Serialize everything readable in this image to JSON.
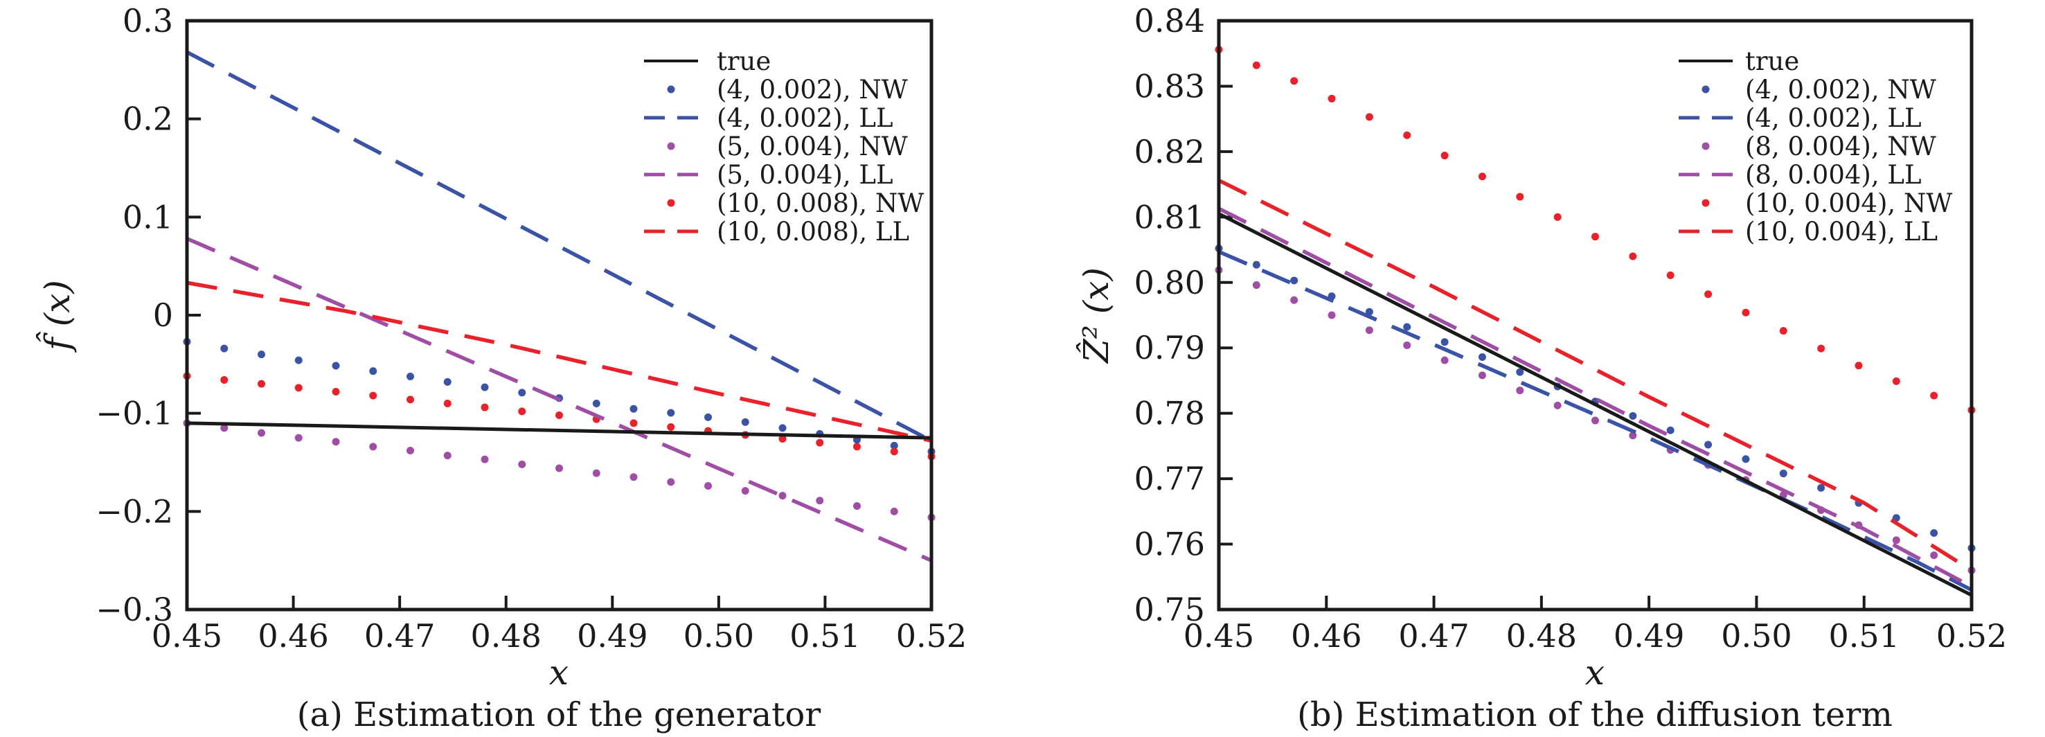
{
  "chart_data": [
    {
      "id": "a",
      "type": "line",
      "caption": "(a) Estimation of the generator",
      "xlabel": "x",
      "ylabel": "f̂ (x)",
      "xlim": [
        0.45,
        0.52
      ],
      "ylim": [
        -0.3,
        0.3
      ],
      "grid": false,
      "legend_position": "upper-right-inside",
      "xticks": [
        0.45,
        0.46,
        0.47,
        0.48,
        0.49,
        0.5,
        0.51,
        0.52
      ],
      "xtick_labels": [
        "0.45",
        "0.46",
        "0.47",
        "0.48",
        "0.49",
        "0.50",
        "0.51",
        "0.52"
      ],
      "yticks": [
        0.3,
        0.2,
        0.1,
        0,
        -0.1,
        -0.2,
        -0.3
      ],
      "ytick_labels": [
        "0.3",
        "0.2",
        "0.1",
        "0",
        "−0.1",
        "−0.2",
        "−0.3"
      ],
      "series": [
        {
          "label": "true",
          "style": "solid",
          "color": "#1a1a1a",
          "points": [
            [
              0.45,
              -0.11
            ],
            [
              0.52,
              -0.125
            ]
          ]
        },
        {
          "label": "(4, 0.002), NW",
          "style": "dots",
          "color": "#3a53a4",
          "points": [
            [
              0.45,
              -0.027
            ],
            [
              0.4535,
              -0.034
            ],
            [
              0.457,
              -0.04
            ],
            [
              0.4605,
              -0.046
            ],
            [
              0.464,
              -0.0515
            ],
            [
              0.4675,
              -0.057
            ],
            [
              0.471,
              -0.0625
            ],
            [
              0.4745,
              -0.068
            ],
            [
              0.478,
              -0.0735
            ],
            [
              0.4815,
              -0.079
            ],
            [
              0.485,
              -0.0845
            ],
            [
              0.4885,
              -0.09
            ],
            [
              0.492,
              -0.0955
            ],
            [
              0.4955,
              -0.0995
            ],
            [
              0.499,
              -0.104
            ],
            [
              0.5025,
              -0.109
            ],
            [
              0.506,
              -0.115
            ],
            [
              0.5095,
              -0.121
            ],
            [
              0.513,
              -0.127
            ],
            [
              0.5165,
              -0.133
            ],
            [
              0.52,
              -0.139
            ]
          ]
        },
        {
          "label": "(4, 0.002), LL",
          "style": "dashed",
          "color": "#3a53a4",
          "points": [
            [
              0.45,
              0.268
            ],
            [
              0.52,
              -0.128
            ]
          ]
        },
        {
          "label": "(5, 0.004), NW",
          "style": "dots",
          "color": "#a04da5",
          "points": [
            [
              0.45,
              -0.11
            ],
            [
              0.4535,
              -0.115
            ],
            [
              0.457,
              -0.12
            ],
            [
              0.4605,
              -0.125
            ],
            [
              0.464,
              -0.129
            ],
            [
              0.4675,
              -0.134
            ],
            [
              0.471,
              -0.138
            ],
            [
              0.4745,
              -0.143
            ],
            [
              0.478,
              -0.147
            ],
            [
              0.4815,
              -0.152
            ],
            [
              0.485,
              -0.156
            ],
            [
              0.4885,
              -0.161
            ],
            [
              0.492,
              -0.165
            ],
            [
              0.4955,
              -0.17
            ],
            [
              0.499,
              -0.174
            ],
            [
              0.5025,
              -0.179
            ],
            [
              0.506,
              -0.184
            ],
            [
              0.5095,
              -0.189
            ],
            [
              0.513,
              -0.1945
            ],
            [
              0.5165,
              -0.2
            ],
            [
              0.52,
              -0.206
            ]
          ]
        },
        {
          "label": "(5, 0.004), LL",
          "style": "dashed",
          "color": "#a04da5",
          "points": [
            [
              0.45,
              0.078
            ],
            [
              0.52,
              -0.25
            ]
          ]
        },
        {
          "label": "(10, 0.008), NW",
          "style": "dots",
          "color": "#e8212a",
          "points": [
            [
              0.45,
              -0.062
            ],
            [
              0.4535,
              -0.066
            ],
            [
              0.457,
              -0.07
            ],
            [
              0.4605,
              -0.074
            ],
            [
              0.464,
              -0.078
            ],
            [
              0.4675,
              -0.082
            ],
            [
              0.471,
              -0.086
            ],
            [
              0.4745,
              -0.09
            ],
            [
              0.478,
              -0.094
            ],
            [
              0.4815,
              -0.098
            ],
            [
              0.485,
              -0.102
            ],
            [
              0.4885,
              -0.106
            ],
            [
              0.492,
              -0.11
            ],
            [
              0.4955,
              -0.114
            ],
            [
              0.499,
              -0.118
            ],
            [
              0.5025,
              -0.122
            ],
            [
              0.506,
              -0.126
            ],
            [
              0.5095,
              -0.13
            ],
            [
              0.513,
              -0.134
            ],
            [
              0.5165,
              -0.139
            ],
            [
              0.52,
              -0.144
            ]
          ]
        },
        {
          "label": "(10, 0.008), LL",
          "style": "dashed",
          "color": "#e8212a",
          "points": [
            [
              0.45,
              0.033
            ],
            [
              0.465,
              0.004
            ],
            [
              0.48,
              -0.03
            ],
            [
              0.5,
              -0.08
            ],
            [
              0.52,
              -0.128
            ]
          ]
        }
      ]
    },
    {
      "id": "b",
      "type": "line",
      "caption": "(b) Estimation of the diffusion term",
      "xlabel": "x",
      "ylabel": "Ẑ² (x)",
      "xlim": [
        0.45,
        0.52
      ],
      "ylim": [
        0.75,
        0.84
      ],
      "grid": false,
      "legend_position": "upper-right-inside",
      "xticks": [
        0.45,
        0.46,
        0.47,
        0.48,
        0.49,
        0.5,
        0.51,
        0.52
      ],
      "xtick_labels": [
        "0.45",
        "0.46",
        "0.47",
        "0.48",
        "0.49",
        "0.50",
        "0.51",
        "0.52"
      ],
      "yticks": [
        0.84,
        0.83,
        0.82,
        0.81,
        0.8,
        0.79,
        0.78,
        0.77,
        0.76,
        0.75
      ],
      "ytick_labels": [
        "0.84",
        "0.83",
        "0.82",
        "0.81",
        "0.80",
        "0.79",
        "0.78",
        "0.77",
        "0.76",
        "0.75"
      ],
      "series": [
        {
          "label": "true",
          "style": "solid",
          "color": "#1a1a1a",
          "points": [
            [
              0.45,
              0.8105
            ],
            [
              0.52,
              0.7522
            ]
          ]
        },
        {
          "label": "(4, 0.002), NW",
          "style": "dots",
          "color": "#3a53a4",
          "points": [
            [
              0.45,
              0.8052
            ],
            [
              0.4535,
              0.8027
            ],
            [
              0.457,
              0.8003
            ],
            [
              0.4605,
              0.7979
            ],
            [
              0.464,
              0.7955
            ],
            [
              0.4675,
              0.7932
            ],
            [
              0.471,
              0.7909
            ],
            [
              0.4745,
              0.7886
            ],
            [
              0.478,
              0.7863
            ],
            [
              0.4815,
              0.7841
            ],
            [
              0.485,
              0.7818
            ],
            [
              0.4885,
              0.7796
            ],
            [
              0.492,
              0.7774
            ],
            [
              0.4955,
              0.7752
            ],
            [
              0.499,
              0.773
            ],
            [
              0.5025,
              0.7708
            ],
            [
              0.506,
              0.7686
            ],
            [
              0.5095,
              0.7663
            ],
            [
              0.513,
              0.764
            ],
            [
              0.5165,
              0.7617
            ],
            [
              0.52,
              0.7594
            ]
          ]
        },
        {
          "label": "(4, 0.002), LL",
          "style": "dashed",
          "color": "#3a53a4",
          "points": [
            [
              0.45,
              0.8047
            ],
            [
              0.47,
              0.7905
            ],
            [
              0.49,
              0.7762
            ],
            [
              0.505,
              0.765
            ],
            [
              0.515,
              0.7572
            ],
            [
              0.52,
              0.753
            ]
          ]
        },
        {
          "label": "(8, 0.004), NW",
          "style": "dots",
          "color": "#a04da5",
          "points": [
            [
              0.45,
              0.8019
            ],
            [
              0.4535,
              0.7996
            ],
            [
              0.457,
              0.7973
            ],
            [
              0.4605,
              0.795
            ],
            [
              0.464,
              0.7927
            ],
            [
              0.4675,
              0.7904
            ],
            [
              0.471,
              0.7881
            ],
            [
              0.4745,
              0.7858
            ],
            [
              0.478,
              0.7835
            ],
            [
              0.4815,
              0.7812
            ],
            [
              0.485,
              0.7789
            ],
            [
              0.4885,
              0.7766
            ],
            [
              0.492,
              0.7744
            ],
            [
              0.4955,
              0.7721
            ],
            [
              0.499,
              0.7698
            ],
            [
              0.5025,
              0.7675
            ],
            [
              0.506,
              0.7652
            ],
            [
              0.5095,
              0.7629
            ],
            [
              0.513,
              0.7606
            ],
            [
              0.5165,
              0.7583
            ],
            [
              0.52,
              0.756
            ]
          ]
        },
        {
          "label": "(8, 0.004), LL",
          "style": "dashed",
          "color": "#a04da5",
          "points": [
            [
              0.45,
              0.8113
            ],
            [
              0.47,
              0.7947
            ],
            [
              0.49,
              0.7781
            ],
            [
              0.51,
              0.7623
            ],
            [
              0.52,
              0.7535
            ]
          ]
        },
        {
          "label": "(10, 0.004), NW",
          "style": "dots",
          "color": "#e8212a",
          "points": [
            [
              0.45,
              0.8356
            ],
            [
              0.4535,
              0.8332
            ],
            [
              0.457,
              0.8308
            ],
            [
              0.4605,
              0.8281
            ],
            [
              0.464,
              0.8253
            ],
            [
              0.4675,
              0.8225
            ],
            [
              0.471,
              0.8194
            ],
            [
              0.4745,
              0.8162
            ],
            [
              0.478,
              0.8131
            ],
            [
              0.4815,
              0.81
            ],
            [
              0.485,
              0.807
            ],
            [
              0.4885,
              0.804
            ],
            [
              0.492,
              0.8011
            ],
            [
              0.4955,
              0.7982
            ],
            [
              0.499,
              0.7954
            ],
            [
              0.5025,
              0.7926
            ],
            [
              0.506,
              0.7899
            ],
            [
              0.5095,
              0.7873
            ],
            [
              0.513,
              0.7849
            ],
            [
              0.5165,
              0.7827
            ],
            [
              0.52,
              0.7805
            ]
          ]
        },
        {
          "label": "(10, 0.004), LL",
          "style": "dashed",
          "color": "#e8212a",
          "points": [
            [
              0.45,
              0.8156
            ],
            [
              0.47,
              0.7993
            ],
            [
              0.49,
              0.7825
            ],
            [
              0.51,
              0.7663
            ],
            [
              0.52,
              0.756
            ]
          ]
        }
      ]
    }
  ]
}
